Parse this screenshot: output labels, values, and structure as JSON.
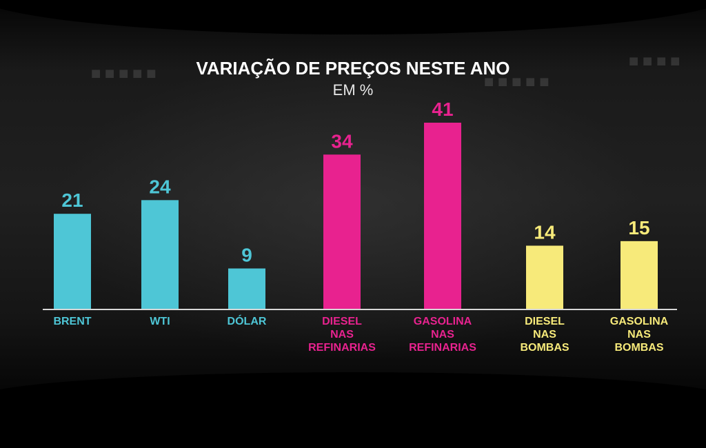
{
  "chart_data": {
    "type": "bar",
    "title": "VARIAÇÃO DE PREÇOS NESTE ANO",
    "subtitle": "EM %",
    "categories": [
      [
        "BRENT"
      ],
      [
        "WTI"
      ],
      [
        "DÓLAR"
      ],
      [
        "DIESEL",
        "NAS",
        "REFINARIAS"
      ],
      [
        "GASOLINA",
        "NAS",
        "REFINARIAS"
      ],
      [
        "DIESEL",
        "NAS",
        "BOMBAS"
      ],
      [
        "GASOLINA",
        "NAS",
        "BOMBAS"
      ]
    ],
    "values": [
      21,
      24,
      9,
      34,
      41,
      14,
      15
    ],
    "value_labels": [
      "21",
      "24",
      "9",
      "34",
      "41",
      "14",
      "15"
    ],
    "colors": [
      "#4ec6d6",
      "#4ec6d6",
      "#4ec6d6",
      "#e8228f",
      "#e8228f",
      "#f7ea7a",
      "#f7ea7a"
    ],
    "ylim": [
      0,
      41
    ],
    "grid": false,
    "legend": "none"
  }
}
